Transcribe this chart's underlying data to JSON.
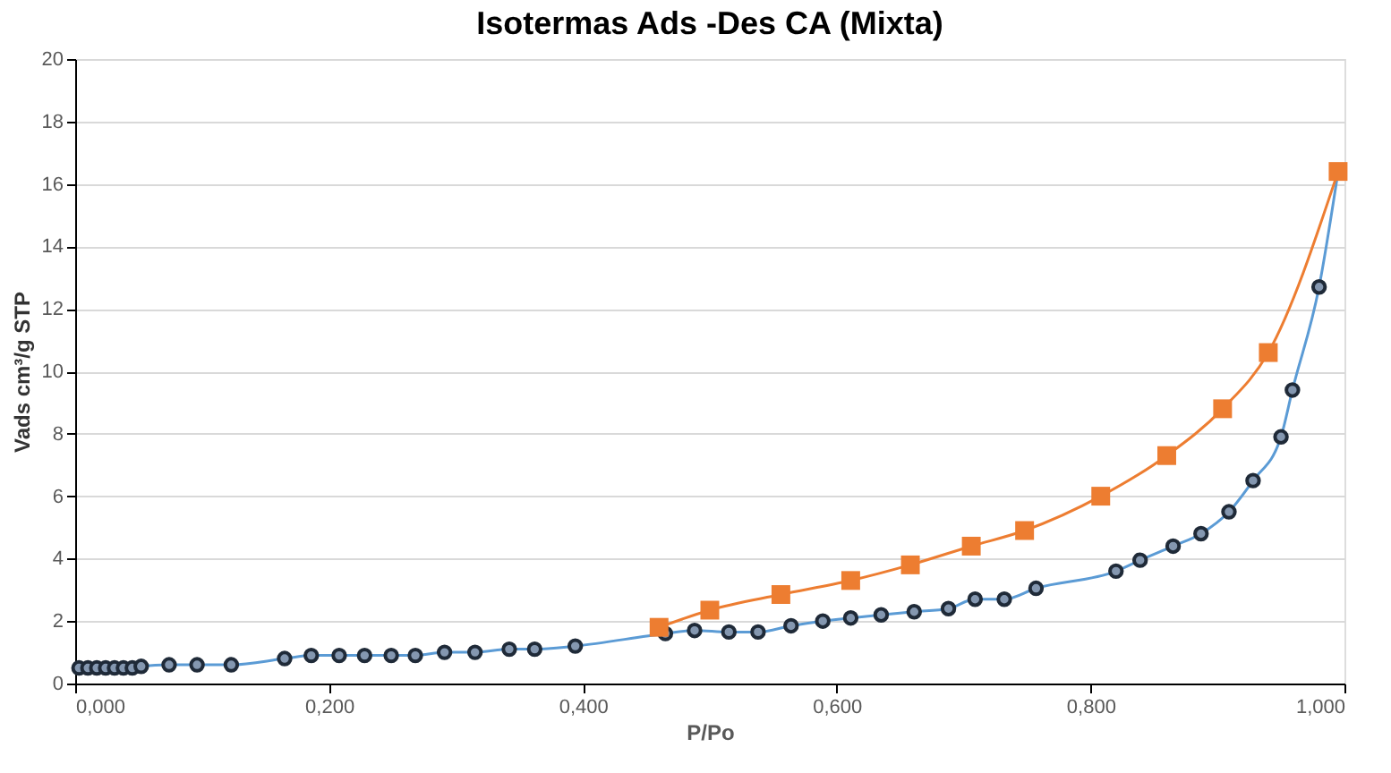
{
  "chart_data": {
    "type": "line",
    "title": "Isotermas Ads -Des CA (Mixta)",
    "xlabel": "P/Po",
    "ylabel": "Vads cm³/g STP",
    "xlim": [
      0,
      1
    ],
    "ylim": [
      0,
      20
    ],
    "xticks": [
      {
        "value": 0,
        "label": "0,000"
      },
      {
        "value": 0.2,
        "label": "0,200"
      },
      {
        "value": 0.4,
        "label": "0,400"
      },
      {
        "value": 0.6,
        "label": "0,600"
      },
      {
        "value": 0.8,
        "label": "0,800"
      },
      {
        "value": 1,
        "label": "1,000"
      }
    ],
    "yticks": [
      0,
      2,
      4,
      6,
      8,
      10,
      12,
      14,
      16,
      18,
      20
    ],
    "grid": "y",
    "line_style": "solid",
    "series": [
      {
        "color": "#5b9bd5",
        "marker": "circle",
        "x": [
          0.003,
          0.01,
          0.017,
          0.024,
          0.031,
          0.038,
          0.045,
          0.052,
          0.074,
          0.096,
          0.123,
          0.165,
          0.186,
          0.208,
          0.228,
          0.249,
          0.268,
          0.291,
          0.315,
          0.342,
          0.362,
          0.394,
          0.465,
          0.488,
          0.515,
          0.538,
          0.564,
          0.589,
          0.611,
          0.635,
          0.661,
          0.688,
          0.709,
          0.732,
          0.757,
          0.82,
          0.839,
          0.865,
          0.887,
          0.909,
          0.928,
          0.95,
          0.959,
          0.98,
          0.995
        ],
        "values": [
          0.5,
          0.5,
          0.5,
          0.5,
          0.5,
          0.5,
          0.5,
          0.55,
          0.6,
          0.6,
          0.6,
          0.8,
          0.9,
          0.9,
          0.9,
          0.9,
          0.9,
          1.0,
          1.0,
          1.1,
          1.1,
          1.2,
          1.6,
          1.7,
          1.65,
          1.65,
          1.85,
          2.0,
          2.1,
          2.2,
          2.3,
          2.4,
          2.7,
          2.7,
          3.05,
          3.6,
          3.95,
          4.4,
          4.8,
          5.5,
          6.5,
          7.9,
          9.4,
          12.7,
          16.4
        ]
      },
      {
        "color": "#ed7d31",
        "marker": "square",
        "x": [
          0.46,
          0.5,
          0.556,
          0.611,
          0.658,
          0.706,
          0.748,
          0.808,
          0.86,
          0.904,
          0.94,
          0.995
        ],
        "values": [
          1.8,
          2.35,
          2.85,
          3.3,
          3.8,
          4.4,
          4.9,
          6.0,
          7.3,
          8.8,
          10.6,
          16.4
        ]
      }
    ]
  }
}
